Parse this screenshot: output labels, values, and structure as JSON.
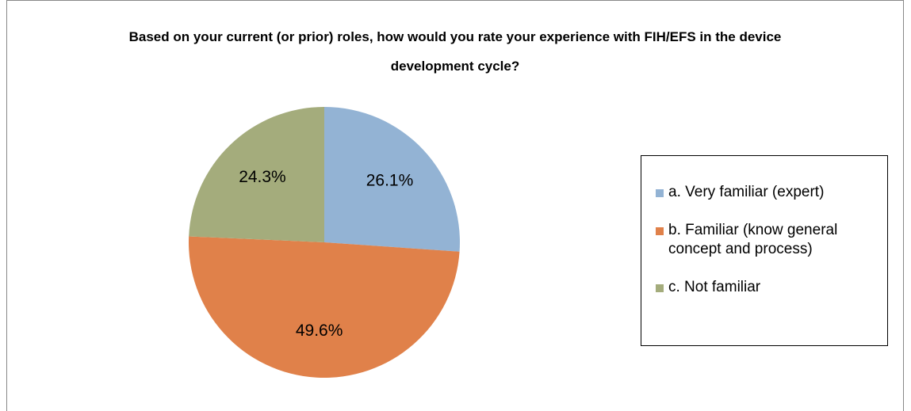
{
  "chart_data": {
    "type": "pie",
    "title": "Based on your current (or prior) roles, how would you rate your experience with FIH/EFS in the device development cycle?",
    "categories": [
      "a. Very familiar (expert)",
      "b. Familiar (know general concept and process)",
      "c. Not familiar"
    ],
    "values": [
      26.1,
      49.6,
      24.3
    ],
    "value_labels": [
      "26.1%",
      "49.6%",
      "24.3%"
    ],
    "colors": [
      "#93b3d4",
      "#e0814a",
      "#a4ac7c"
    ],
    "legend": "right"
  }
}
